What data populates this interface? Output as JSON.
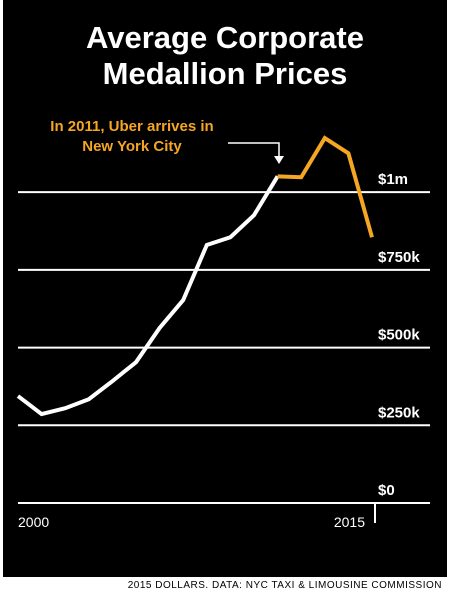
{
  "chart_data": {
    "type": "line",
    "title": "Average Corporate Medallion Prices",
    "annotation": "In 2011, Uber arrives in New York City",
    "source": "2015 DOLLARS. DATA: NYC TAXI & LIMOUSINE COMMISSION",
    "x": [
      2000,
      2001,
      2002,
      2003,
      2004,
      2005,
      2006,
      2007,
      2008,
      2009,
      2010,
      2011,
      2012,
      2013,
      2014,
      2015
    ],
    "values": [
      344000,
      286000,
      305000,
      334000,
      392000,
      453000,
      563000,
      653000,
      830000,
      855000,
      926000,
      1051000,
      1048000,
      1174000,
      1125000,
      855000
    ],
    "color": "#ffffff",
    "highlight_color": "#f5a623",
    "highlight_from": 2011,
    "xlim": [
      2000,
      2015
    ],
    "xticks": [
      2000,
      2015
    ],
    "ylim": [
      0,
      1200000
    ],
    "yticks": [
      {
        "value": 0,
        "label": "$0"
      },
      {
        "value": 250000,
        "label": "$250k"
      },
      {
        "value": 500000,
        "label": "$500k"
      },
      {
        "value": 750000,
        "label": "$750k"
      },
      {
        "value": 1000000,
        "label": "$1m"
      }
    ],
    "grid": true
  }
}
